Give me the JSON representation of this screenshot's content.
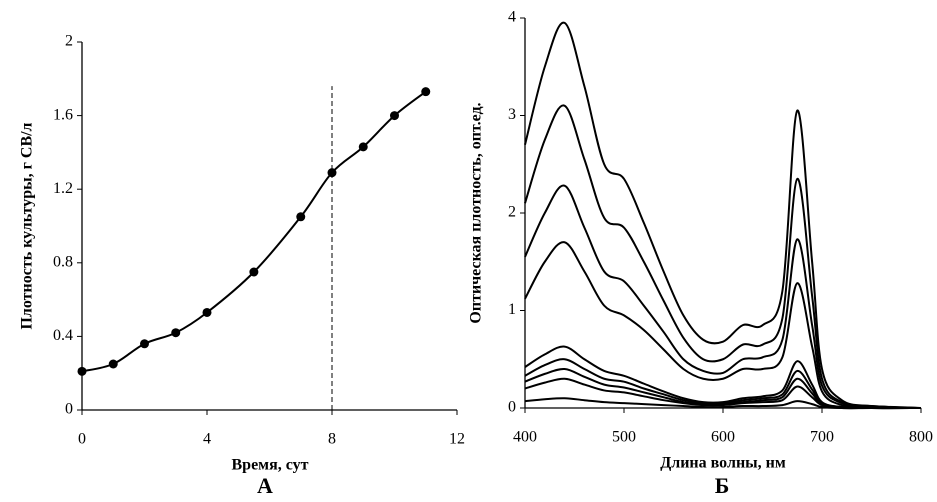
{
  "chart_data": [
    {
      "type": "line",
      "markers": true,
      "smooth": true,
      "color": "#000000",
      "xlabel": "Время, сут",
      "ylabel": "Плотность культуры, г СВ/л",
      "panel_label": "А",
      "x": [
        0,
        1,
        2,
        3,
        4,
        5.5,
        7,
        8,
        9,
        10,
        11
      ],
      "series": [
        {
          "color": "#000000",
          "values": [
            0.21,
            0.25,
            0.36,
            0.42,
            0.53,
            0.75,
            1.05,
            1.29,
            1.43,
            1.6,
            1.73
          ]
        }
      ],
      "vline": 8,
      "xlim": [
        0,
        12
      ],
      "xticks": [
        0,
        4,
        8,
        12
      ],
      "ylim": [
        0,
        2
      ],
      "yticks": [
        0,
        0.4,
        0.8,
        1.2,
        1.6,
        2
      ]
    },
    {
      "type": "line",
      "markers": false,
      "smooth": true,
      "color": "#000000",
      "xlabel": "Длина волны, нм",
      "ylabel": "Оптическая плотность, опт.ед.",
      "panel_label": "Б",
      "x": [
        400,
        420,
        440,
        460,
        480,
        500,
        520,
        540,
        560,
        580,
        600,
        620,
        640,
        660,
        675,
        690,
        700,
        720,
        750,
        800
      ],
      "series": [
        {
          "color": "#000000",
          "values": [
            2.7,
            3.5,
            3.95,
            3.3,
            2.5,
            2.35,
            1.9,
            1.4,
            0.95,
            0.7,
            0.68,
            0.85,
            0.85,
            1.2,
            3.05,
            1.5,
            0.4,
            0.08,
            0.02,
            0
          ]
        },
        {
          "color": "#000000",
          "values": [
            2.1,
            2.75,
            3.1,
            2.55,
            1.95,
            1.85,
            1.5,
            1.1,
            0.72,
            0.5,
            0.5,
            0.65,
            0.65,
            0.92,
            2.35,
            1.15,
            0.3,
            0.06,
            0.02,
            0
          ]
        },
        {
          "color": "#000000",
          "values": [
            1.55,
            2.0,
            2.28,
            1.85,
            1.4,
            1.3,
            1.05,
            0.78,
            0.5,
            0.38,
            0.36,
            0.5,
            0.52,
            0.7,
            1.73,
            0.85,
            0.23,
            0.05,
            0.01,
            0
          ]
        },
        {
          "color": "#000000",
          "values": [
            1.12,
            1.5,
            1.7,
            1.4,
            1.05,
            0.95,
            0.8,
            0.6,
            0.4,
            0.3,
            0.3,
            0.4,
            0.4,
            0.52,
            1.28,
            0.63,
            0.17,
            0.03,
            0.01,
            0
          ]
        },
        {
          "color": "#000000",
          "values": [
            0.42,
            0.55,
            0.63,
            0.5,
            0.38,
            0.33,
            0.25,
            0.17,
            0.1,
            0.06,
            0.06,
            0.1,
            0.12,
            0.18,
            0.48,
            0.24,
            0.06,
            0.01,
            0,
            0
          ]
        },
        {
          "color": "#000000",
          "values": [
            0.33,
            0.44,
            0.5,
            0.4,
            0.3,
            0.27,
            0.2,
            0.14,
            0.08,
            0.05,
            0.05,
            0.08,
            0.1,
            0.14,
            0.38,
            0.19,
            0.05,
            0.01,
            0,
            0
          ]
        },
        {
          "color": "#000000",
          "values": [
            0.27,
            0.35,
            0.4,
            0.32,
            0.24,
            0.21,
            0.16,
            0.11,
            0.06,
            0.04,
            0.04,
            0.06,
            0.08,
            0.11,
            0.3,
            0.15,
            0.04,
            0.01,
            0,
            0
          ]
        },
        {
          "color": "#000000",
          "values": [
            0.2,
            0.26,
            0.3,
            0.24,
            0.18,
            0.16,
            0.12,
            0.08,
            0.05,
            0.03,
            0.03,
            0.05,
            0.06,
            0.08,
            0.22,
            0.11,
            0.03,
            0,
            0,
            0
          ]
        },
        {
          "color": "#000000",
          "values": [
            0.07,
            0.09,
            0.1,
            0.08,
            0.06,
            0.05,
            0.04,
            0.03,
            0.02,
            0.01,
            0.01,
            0.02,
            0.02,
            0.03,
            0.07,
            0.04,
            0.01,
            0,
            0,
            0
          ]
        }
      ],
      "xlim": [
        400,
        800
      ],
      "xticks": [
        400,
        500,
        600,
        700,
        800
      ],
      "ylim": [
        0,
        4
      ],
      "yticks": [
        0,
        1,
        2,
        3,
        4
      ]
    }
  ]
}
